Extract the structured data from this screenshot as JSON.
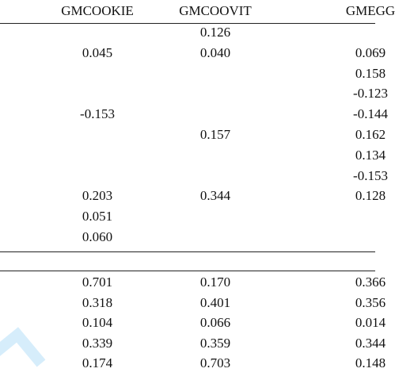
{
  "table": {
    "columns": [
      "GMCOOKIE",
      "GMCOOVIT",
      "GMEGG"
    ],
    "section_marker": ":",
    "top_rows": [
      [
        "",
        "0.126",
        ""
      ],
      [
        "0.045",
        "0.040",
        "0.069"
      ],
      [
        "",
        "",
        "0.158"
      ],
      [
        "",
        "",
        "-0.123"
      ],
      [
        "-0.153",
        "",
        "-0.144"
      ],
      [
        "",
        "0.157",
        "0.162"
      ],
      [
        "",
        "",
        "0.134"
      ],
      [
        "",
        "",
        "-0.153"
      ],
      [
        "0.203",
        "0.344",
        "0.128"
      ],
      [
        "0.051",
        "",
        ""
      ],
      [
        "0.060",
        "",
        ""
      ]
    ],
    "bottom_rows": [
      [
        "0.701",
        "0.170",
        "0.366"
      ],
      [
        "0.318",
        "0.401",
        "0.356"
      ],
      [
        "0.104",
        "0.066",
        "0.014"
      ],
      [
        "0.339",
        "0.359",
        "0.344"
      ],
      [
        "0.174",
        "0.703",
        "0.148"
      ]
    ]
  },
  "watermark_color": "#5bb8f0"
}
